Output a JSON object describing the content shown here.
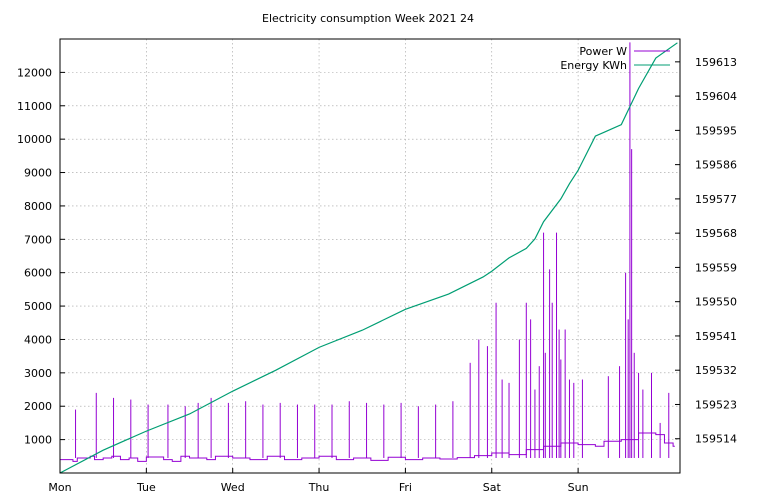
{
  "chart_data": {
    "type": "line",
    "title": "Electricity consumption Week 2021 24",
    "xlabel": "",
    "ylabel": "",
    "y2label": "",
    "x_ticks": [
      "Mon",
      "Tue",
      "Wed",
      "Thu",
      "Fri",
      "Sat",
      "Sun"
    ],
    "xlim": [
      0,
      7.18
    ],
    "ylim": [
      0,
      13000
    ],
    "y_ticks": [
      1000,
      2000,
      3000,
      4000,
      5000,
      6000,
      7000,
      8000,
      9000,
      10000,
      11000,
      12000
    ],
    "y2lim": [
      159505,
      159619
    ],
    "y2_ticks": [
      159514,
      159523,
      159532,
      159541,
      159550,
      159559,
      159568,
      159577,
      159586,
      159595,
      159604,
      159613
    ],
    "grid": true,
    "legend_position": "top-right",
    "colors": {
      "power": "#9400d3",
      "energy": "#009e73"
    },
    "series": [
      {
        "name": "Power W",
        "axis": "y",
        "style": "steps",
        "x": [
          0,
          0.15,
          0.2,
          0.35,
          0.4,
          0.5,
          0.6,
          0.7,
          0.8,
          0.9,
          1.0,
          1.2,
          1.3,
          1.4,
          1.5,
          1.7,
          1.8,
          2.0,
          2.2,
          2.4,
          2.6,
          2.8,
          3.0,
          3.2,
          3.4,
          3.6,
          3.8,
          4.0,
          4.2,
          4.4,
          4.6,
          4.8,
          5.0,
          5.2,
          5.4,
          5.6,
          5.8,
          6.0,
          6.2,
          6.3,
          6.5,
          6.7,
          6.9,
          7.0,
          7.1
        ],
        "values": [
          400,
          350,
          450,
          500,
          400,
          450,
          500,
          400,
          450,
          350,
          480,
          400,
          350,
          500,
          450,
          400,
          500,
          450,
          400,
          500,
          400,
          450,
          500,
          400,
          450,
          380,
          470,
          400,
          450,
          420,
          460,
          520,
          600,
          550,
          700,
          800,
          900,
          850,
          800,
          950,
          1000,
          1200,
          1150,
          900,
          800
        ]
      },
      {
        "name": "Power W spikes",
        "axis": "y",
        "style": "impulses",
        "x": [
          0.18,
          0.42,
          0.62,
          0.82,
          1.02,
          1.25,
          1.45,
          1.6,
          1.75,
          1.95,
          2.15,
          2.35,
          2.55,
          2.75,
          2.95,
          3.15,
          3.35,
          3.55,
          3.75,
          3.95,
          4.15,
          4.35,
          4.55,
          4.75,
          4.85,
          4.95,
          5.05,
          5.12,
          5.2,
          5.32,
          5.4,
          5.45,
          5.5,
          5.55,
          5.6,
          5.62,
          5.67,
          5.7,
          5.75,
          5.78,
          5.8,
          5.85,
          5.9,
          5.95,
          6.05,
          6.35,
          6.48,
          6.55,
          6.58,
          6.6,
          6.62,
          6.65,
          6.7,
          6.75,
          6.85,
          6.95,
          7.05
        ],
        "values": [
          1900,
          2400,
          2250,
          2200,
          2050,
          2050,
          2000,
          2100,
          2250,
          2100,
          2150,
          2050,
          2100,
          2050,
          2050,
          2050,
          2150,
          2100,
          2050,
          2100,
          2000,
          2050,
          2150,
          3300,
          4000,
          3800,
          5100,
          2800,
          2700,
          4000,
          5100,
          4600,
          2500,
          3200,
          7200,
          3600,
          6100,
          5100,
          7200,
          4300,
          3400,
          4300,
          2800,
          2700,
          2800,
          2900,
          3200,
          6000,
          4600,
          12900,
          9700,
          3600,
          3000,
          2500,
          3000,
          1500,
          2400
        ]
      },
      {
        "name": "Energy KWh",
        "axis": "y2",
        "style": "line",
        "x": [
          0,
          0.5,
          1.0,
          1.5,
          2.0,
          2.5,
          3.0,
          3.5,
          4.0,
          4.5,
          4.9,
          5.0,
          5.2,
          5.4,
          5.5,
          5.6,
          5.8,
          5.9,
          6.0,
          6.2,
          6.3,
          6.5,
          6.7,
          6.9,
          7.15
        ],
        "values": [
          159505.0,
          159511.0,
          159516.0,
          159520.5,
          159526.5,
          159532.0,
          159538.0,
          159542.5,
          159548.0,
          159552.0,
          159556.5,
          159558.0,
          159561.5,
          159564.0,
          159566.5,
          159571.0,
          159577.0,
          159581.0,
          159584.5,
          159593.5,
          159594.5,
          159596.5,
          159606.0,
          159614.0,
          159618.0
        ]
      }
    ]
  }
}
